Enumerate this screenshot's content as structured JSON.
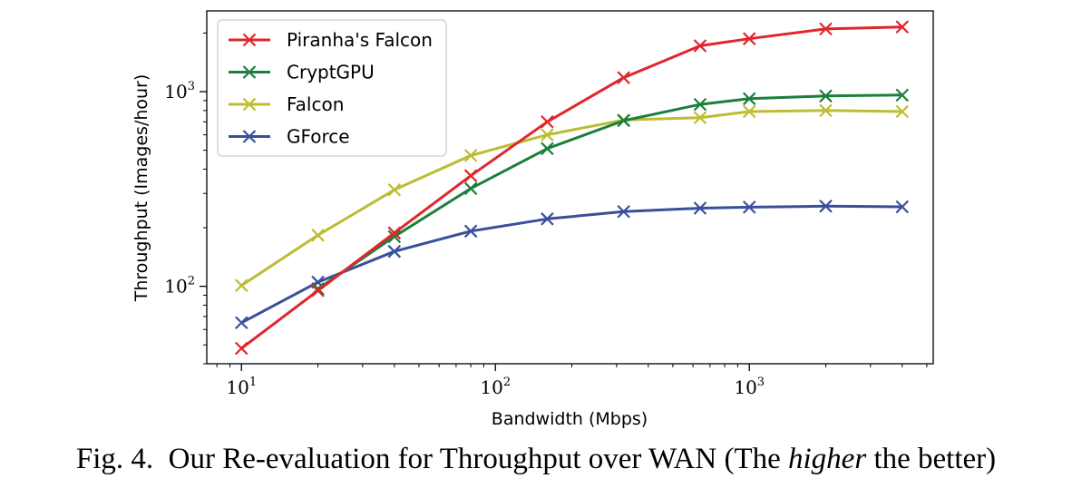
{
  "chart_data": {
    "type": "line",
    "xlabel": "Bandwidth (Mbps)",
    "ylabel": "Throughput (Images/hour)",
    "xscale": "log",
    "yscale": "log",
    "xlim": [
      7.3,
      5300
    ],
    "ylim": [
      40,
      2600
    ],
    "xticks_major": [
      {
        "base": "10",
        "exp": "1",
        "value": 10
      },
      {
        "base": "10",
        "exp": "2",
        "value": 100
      },
      {
        "base": "10",
        "exp": "3",
        "value": 1000
      }
    ],
    "yticks_major": [
      {
        "base": "10",
        "exp": "2",
        "value": 100
      },
      {
        "base": "10",
        "exp": "3",
        "value": 1000
      }
    ],
    "grid": false,
    "legend": "top-left",
    "x": [
      10,
      20,
      40,
      80,
      160,
      320,
      640,
      1000,
      2000,
      4000
    ],
    "series": [
      {
        "name": "Piranha's Falcon",
        "color": "#e0262b",
        "values": [
          48,
          95,
          188,
          370,
          700,
          1180,
          1720,
          1870,
          2100,
          2150
        ]
      },
      {
        "name": "CryptGPU",
        "color": "#1b7f3e",
        "values": [
          null,
          97,
          180,
          318,
          510,
          710,
          860,
          920,
          950,
          960
        ]
      },
      {
        "name": "Falcon",
        "color": "#bcbd32",
        "values": [
          101,
          183,
          313,
          470,
          600,
          715,
          735,
          790,
          800,
          790
        ]
      },
      {
        "name": "GForce",
        "color": "#3a4f9c",
        "values": [
          65,
          105,
          151,
          192,
          222,
          242,
          252,
          255,
          258,
          256
        ]
      }
    ]
  },
  "caption": {
    "prefix": "Fig. 4.",
    "before": "Our Re-evaluation for Throughput over WAN (The ",
    "emph": "higher",
    "after": " the better)"
  }
}
